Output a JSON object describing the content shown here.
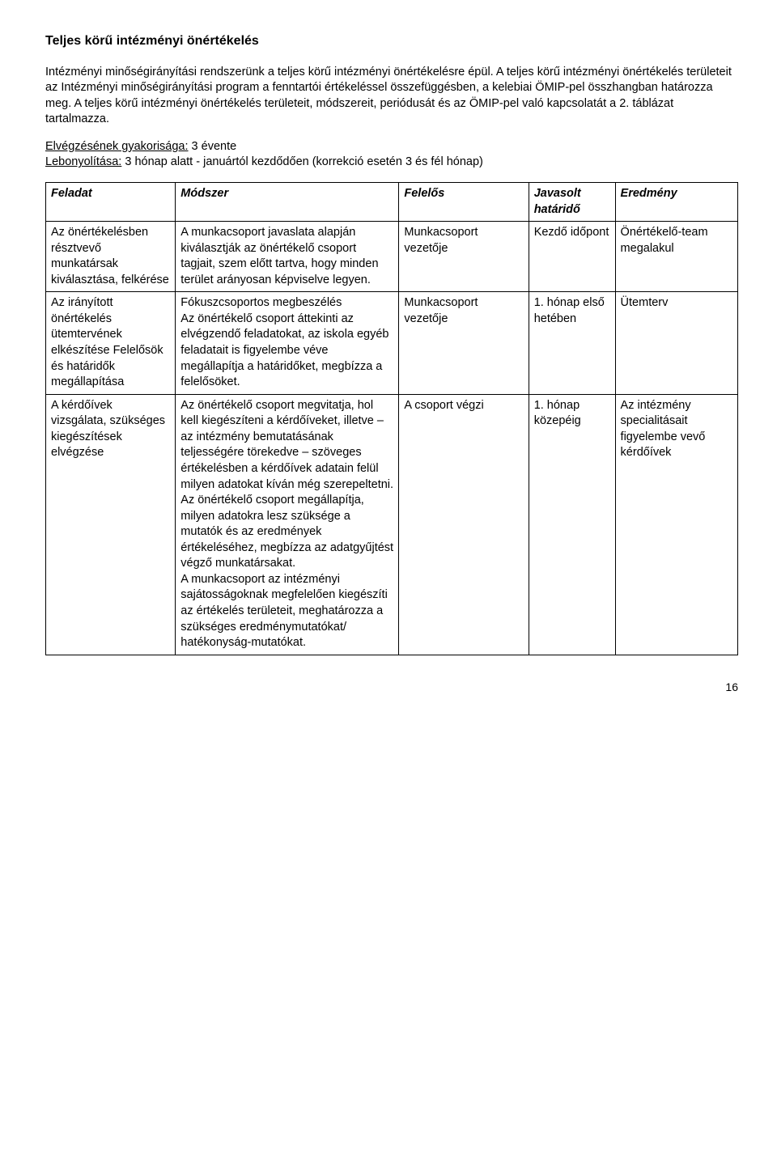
{
  "title": "Teljes körű intézményi önértékelés",
  "paragraphs": {
    "p1": "Intézményi minőségirányítási rendszerünk a teljes körű intézményi önértékelésre épül. A teljes körű intézményi önértékelés területeit az Intézményi minőségirányítási program a fenntartói értékeléssel összefüggésben, a kelebiai ÖMIP-pel összhangban határozza meg. A teljes körű intézményi önértékelés területeit, módszereit, periódusát és az ÖMIP-pel való kapcsolatát a 2. táblázat tartalmazza.",
    "freq_label": "Elvégzésének gyakorisága:",
    "freq_val": " 3 évente",
    "proc_label": "Lebonyolítása:",
    "proc_val": " 3 hónap alatt - januártól kezdődően (korrekció esetén 3 és fél hónap)"
  },
  "headers": {
    "feladat": "Feladat",
    "modszer": "Módszer",
    "felelos": "Felelős",
    "javasolt": "Javasolt határidő",
    "eredmeny": "Eredmény"
  },
  "rows": [
    {
      "feladat": "Az önértékelésben résztvevő munkatársak kiválasztása, felkérése",
      "modszer": "A  munkacsoport javaslata alapján kiválasztják az önértékelő csoport tagjait, szem előtt tartva, hogy minden terület arányosan képviselve legyen.",
      "felelos": "Munkacsoport vezetője",
      "javasolt": "Kezdő időpont",
      "eredmeny": "Önértékelő-team megalakul"
    },
    {
      "feladat": "Az irányított önértékelés ütemtervének elkészítése Felelősök és határidők megállapítása",
      "modszer": "Fókuszcsoportos megbeszélés\nAz önértékelő csoport áttekinti az elvégzendő feladatokat, az iskola egyéb feladatait is figyelembe véve megállapítja a határidőket, megbízza a felelősöket.",
      "felelos": "Munkacsoport vezetője",
      "javasolt": "1. hónap első hetében",
      "eredmeny": "Ütemterv"
    },
    {
      "feladat": "A kérdőívek vizsgálata, szükséges kiegészítések elvégzése",
      "modszer": "Az önértékelő csoport megvitatja, hol kell kiegészíteni a kérdőíveket, illetve –az intézmény bemutatásának teljességére törekedve – szöveges értékelésben a kérdőívek adatain felül milyen adatokat kíván még szerepeltetni.\nAz önértékelő csoport megállapítja, milyen adatokra lesz szüksége a mutatók és az eredmények értékeléséhez, megbízza az adatgyűjtést végző munkatársakat.\nA munkacsoport az intézményi sajátosságoknak megfelelően kiegészíti az értékelés területeit, meghatározza a szükséges eredménymutatókat/ hatékonyság-mutatókat.",
      "felelos": "A csoport végzi",
      "javasolt": "1. hónap közepéig",
      "eredmeny": "Az intézmény specialitásait figyelembe vevő kérdőívek"
    }
  ],
  "page_number": "16"
}
